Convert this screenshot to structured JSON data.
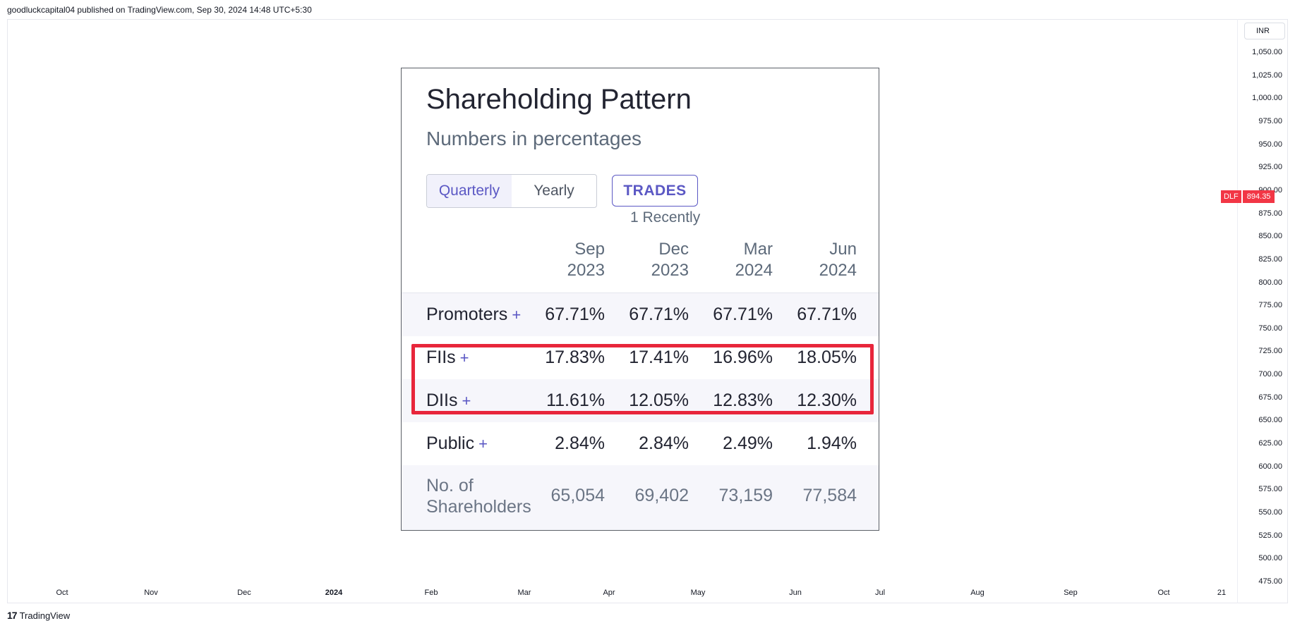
{
  "publish_line": "goodluckcapital04 published on TradingView.com, Sep 30, 2024 14:48 UTC+5:30",
  "currency": "INR",
  "price_badge": {
    "symbol": "DLF",
    "value": "894.35",
    "color": "#f23645"
  },
  "y_axis_ticks": [
    "1,050.00",
    "1,025.00",
    "1,000.00",
    "975.00",
    "950.00",
    "925.00",
    "900.00",
    "875.00",
    "850.00",
    "825.00",
    "800.00",
    "775.00",
    "750.00",
    "725.00",
    "700.00",
    "675.00",
    "650.00",
    "625.00",
    "600.00",
    "575.00",
    "550.00",
    "525.00",
    "500.00",
    "475.00"
  ],
  "x_axis_ticks": [
    {
      "label": "Oct",
      "bold": false
    },
    {
      "label": "Nov",
      "bold": false
    },
    {
      "label": "Dec",
      "bold": false
    },
    {
      "label": "2024",
      "bold": true
    },
    {
      "label": "Feb",
      "bold": false
    },
    {
      "label": "Mar",
      "bold": false
    },
    {
      "label": "Apr",
      "bold": false
    },
    {
      "label": "May",
      "bold": false
    },
    {
      "label": "Jun",
      "bold": false
    },
    {
      "label": "Jul",
      "bold": false
    },
    {
      "label": "Aug",
      "bold": false
    },
    {
      "label": "Sep",
      "bold": false
    },
    {
      "label": "Oct",
      "bold": false
    },
    {
      "label": "21",
      "bold": false
    }
  ],
  "footer": {
    "brand": "TradingView",
    "mark": "17"
  },
  "card": {
    "title": "Shareholding Pattern",
    "subtitle": "Numbers in percentages",
    "toggle": {
      "options": [
        "Quarterly",
        "Yearly"
      ],
      "selected": "Quarterly"
    },
    "trades_button": "TRADES",
    "trades_note": "1 Recently",
    "columns": [
      {
        "line1": "Sep",
        "line2": "2023"
      },
      {
        "line1": "Dec",
        "line2": "2023"
      },
      {
        "line1": "Mar",
        "line2": "2024"
      },
      {
        "line1": "Jun",
        "line2": "2024"
      }
    ],
    "rows": [
      {
        "label": "Promoters",
        "plus": "+",
        "values": [
          "67.71%",
          "67.71%",
          "67.71%",
          "67.71%"
        ]
      },
      {
        "label": "FIIs",
        "plus": "+",
        "values": [
          "17.83%",
          "17.41%",
          "16.96%",
          "18.05%"
        ]
      },
      {
        "label": "DIIs",
        "plus": "+",
        "values": [
          "11.61%",
          "12.05%",
          "12.83%",
          "12.30%"
        ]
      },
      {
        "label": "Public",
        "plus": "+",
        "values": [
          "2.84%",
          "2.84%",
          "2.49%",
          "1.94%"
        ]
      }
    ],
    "shareholders": {
      "label_line1": "No. of",
      "label_line2": "Shareholders",
      "values": [
        "65,054",
        "69,402",
        "73,159",
        "77,584"
      ]
    },
    "highlight_color": "#e8263b",
    "accent_color": "#5b58c4"
  }
}
